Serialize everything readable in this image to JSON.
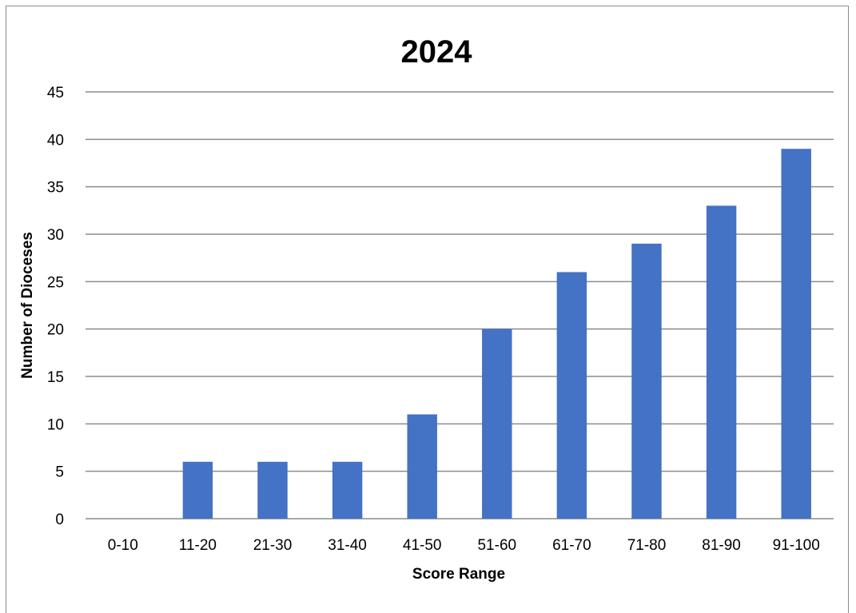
{
  "chart_data": {
    "type": "bar",
    "title": "2024",
    "xlabel": "Score Range",
    "ylabel": "Number of Dioceses",
    "categories": [
      "0-10",
      "11-20",
      "21-30",
      "31-40",
      "41-50",
      "51-60",
      "61-70",
      "71-80",
      "81-90",
      "91-100"
    ],
    "values": [
      0,
      6,
      6,
      6,
      11,
      20,
      26,
      29,
      33,
      39
    ],
    "ylim": [
      0,
      45
    ],
    "yticks": [
      0,
      5,
      10,
      15,
      20,
      25,
      30,
      35,
      40,
      45
    ],
    "grid": true,
    "legend": "none",
    "bar_color": "#4472c4"
  }
}
